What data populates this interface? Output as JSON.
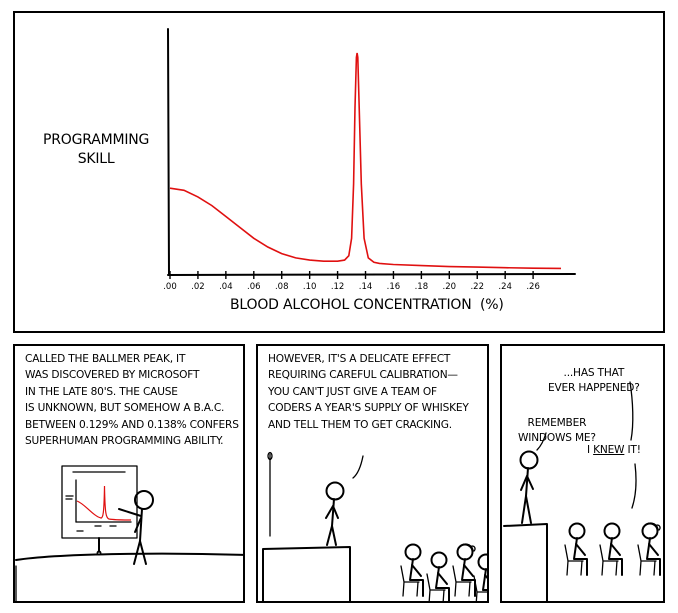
{
  "colors": {
    "curve": "#e01010",
    "ink": "#000000"
  },
  "panel1": {
    "ylabel": "PROGRAMMING\nSKILL",
    "xlabel": "BLOOD ALCOHOL CONCENTRATION  (%)"
  },
  "chart_data": {
    "type": "line",
    "title": "",
    "xlabel": "BLOOD ALCOHOL CONCENTRATION  (%)",
    "ylabel": "PROGRAMMING SKILL",
    "xticks": [
      ".00",
      ".02",
      ".04",
      ".06",
      ".08",
      ".10",
      ".12",
      ".14",
      ".16",
      ".18",
      ".20",
      ".22",
      ".24",
      ".26"
    ],
    "xlim": [
      0,
      0.29
    ],
    "ylim": [
      0,
      1
    ],
    "grid": false,
    "series": [
      {
        "x": [
          0,
          0.01,
          0.02,
          0.03,
          0.04,
          0.05,
          0.06,
          0.07,
          0.08,
          0.09,
          0.1,
          0.11,
          0.12,
          0.125,
          0.128,
          0.13,
          0.1315,
          0.1325,
          0.1335,
          0.134,
          0.1345,
          0.1355,
          0.137,
          0.139,
          0.142,
          0.146,
          0.15,
          0.16,
          0.18,
          0.2,
          0.22,
          0.24,
          0.26,
          0.28
        ],
        "y": [
          0.38,
          0.37,
          0.34,
          0.3,
          0.25,
          0.2,
          0.15,
          0.11,
          0.08,
          0.06,
          0.05,
          0.045,
          0.045,
          0.05,
          0.07,
          0.15,
          0.4,
          0.75,
          0.98,
          1.0,
          0.98,
          0.75,
          0.4,
          0.15,
          0.06,
          0.04,
          0.035,
          0.03,
          0.025,
          0.02,
          0.018,
          0.015,
          0.013,
          0.012
        ]
      }
    ]
  },
  "panel2": {
    "caption": "CALLED THE BALLMER PEAK, IT\nWAS DISCOVERED BY MICROSOFT\nIN THE LATE 80's. THE CAUSE\nIS UNKNOWN, BUT SOMEHOW A B.A.C.\nBETWEEN 0.129% AND 0.138% CONFERS\nSUPERHUMAN PROGRAMMING ABILITY."
  },
  "panel3": {
    "caption": "HOWEVER, IT'S A DELICATE EFFECT\nREQUIRING CAREFUL CALIBRATION—\nYOU CAN'T JUST GIVE A TEAM OF\nCODERS A YEAR'S SUPPLY OF WHISKEY\nAND TELL THEM TO GET CRACKING."
  },
  "panel4": {
    "speech_top": "...HAS THAT\nEVER HAPPENED?",
    "speech_left": "REMEMBER\nWINDOWS ME?",
    "speech_right_pre": "I ",
    "speech_right_emph": "KNEW",
    "speech_right_post": " IT!"
  }
}
